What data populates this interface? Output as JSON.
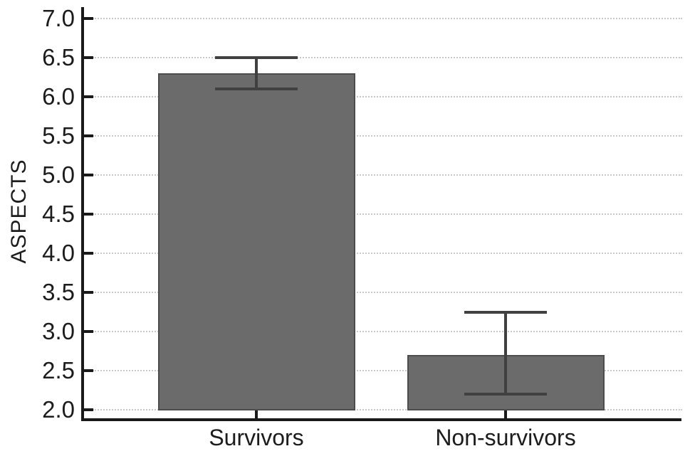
{
  "chart_data": {
    "type": "bar",
    "categories": [
      "Survivors",
      "Non-survivors"
    ],
    "values": [
      6.3,
      2.7
    ],
    "error_low": [
      6.1,
      2.2
    ],
    "error_high": [
      6.5,
      3.25
    ],
    "title": "",
    "xlabel": "",
    "ylabel": "ASPECTS",
    "ylim": [
      2.0,
      7.0
    ],
    "ytick_step": 0.5,
    "ytick_labels": [
      "7.0",
      "6.5",
      "6.0",
      "5.5",
      "5.0",
      "4.5",
      "4.0",
      "3.5",
      "3.0",
      "2.5",
      "2.0"
    ],
    "grid": "horizontal-dotted",
    "legend": "none",
    "colors": {
      "bar_fill": "#6b6b6b",
      "bar_edge": "#4d4d4d",
      "errorbar": "#404040",
      "axis": "#1a1a1a",
      "gridline": "#c8c8c8",
      "text": "#1c1c1c",
      "background": "#ffffff"
    }
  }
}
